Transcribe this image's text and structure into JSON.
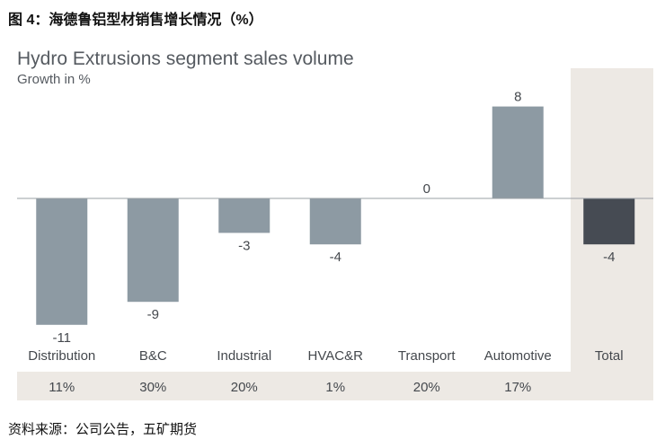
{
  "figure_caption": "图 4：海德鲁铝型材销售增长情况（%）",
  "source": "资料来源：公司公告，五矿期货",
  "colors": {
    "bar": "#8d9aa3",
    "total_bar": "#464b53",
    "total_band": "#ede9e4",
    "share_band": "#ede9e4",
    "axis": "#9aa0a6"
  },
  "chart_data": {
    "type": "bar",
    "title": "Hydro Extrusions segment sales volume",
    "subtitle": "Growth in %",
    "categories": [
      "Distribution",
      "B&C",
      "Industrial",
      "HVAC&R",
      "Transport",
      "Automotive",
      "Total"
    ],
    "values": [
      -11,
      -9,
      -3,
      -4,
      0,
      8,
      -4
    ],
    "value_labels": [
      "-11",
      "-9",
      "-3",
      "-4",
      "0",
      "8",
      "-4"
    ],
    "shares": [
      "11%",
      "30%",
      "20%",
      "1%",
      "20%",
      "17%",
      ""
    ],
    "ylim": [
      -11,
      8
    ],
    "grid": false,
    "legend": "none"
  }
}
